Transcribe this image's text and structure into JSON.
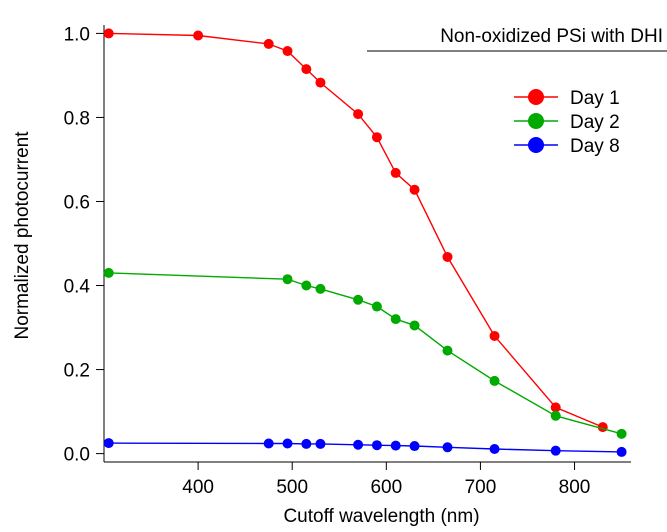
{
  "chart_data": {
    "type": "line",
    "title": "",
    "annotation": "Non-oxidized PSi with DHI",
    "xlabel": "Cutoff wavelength (nm)",
    "ylabel": "Normalized photocurrent",
    "xlim": [
      300,
      860
    ],
    "ylim": [
      -0.02,
      1.02
    ],
    "xticks": [
      400,
      500,
      600,
      700,
      800
    ],
    "yticks": [
      0.0,
      0.2,
      0.4,
      0.6,
      0.8,
      1.0
    ],
    "xtick_labels": [
      "400",
      "500",
      "600",
      "700",
      "800"
    ],
    "ytick_labels": [
      "0.0",
      "0.2",
      "0.4",
      "0.6",
      "0.8",
      "1.0"
    ],
    "grid": false,
    "legend_position": "top-right",
    "series": [
      {
        "name": "Day 1",
        "color": "#ff0000",
        "x": [
          305,
          400,
          475,
          495,
          515,
          530,
          570,
          590,
          610,
          630,
          665,
          715,
          780,
          830
        ],
        "y": [
          1.0,
          0.995,
          0.975,
          0.958,
          0.915,
          0.883,
          0.808,
          0.753,
          0.668,
          0.628,
          0.468,
          0.28,
          0.11,
          0.063
        ]
      },
      {
        "name": "Day 2",
        "color": "#00aa00",
        "x": [
          305,
          495,
          515,
          530,
          570,
          590,
          610,
          630,
          665,
          715,
          780,
          850
        ],
        "y": [
          0.43,
          0.415,
          0.4,
          0.392,
          0.366,
          0.35,
          0.32,
          0.305,
          0.245,
          0.173,
          0.09,
          0.047
        ]
      },
      {
        "name": "Day 8",
        "color": "#0000ff",
        "x": [
          305,
          475,
          495,
          515,
          530,
          570,
          590,
          610,
          630,
          665,
          715,
          780,
          850
        ],
        "y": [
          0.025,
          0.024,
          0.024,
          0.023,
          0.023,
          0.021,
          0.02,
          0.019,
          0.018,
          0.015,
          0.011,
          0.007,
          0.004
        ]
      }
    ]
  }
}
